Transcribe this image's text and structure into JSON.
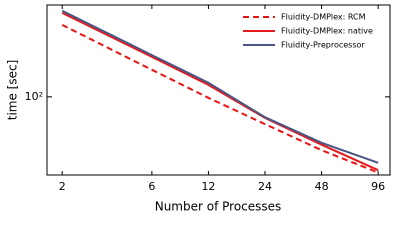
{
  "chart_data": {
    "type": "line",
    "x_label": "Number of Processes",
    "y_label": "time [sec]",
    "x": [
      2,
      6,
      12,
      24,
      48,
      96
    ],
    "series": [
      {
        "name": "Fluidity-DMPlex: RCM",
        "color": "#ee1111",
        "linestyle": "dashed",
        "values": [
          485,
          181,
          98,
          55,
          31,
          19
        ]
      },
      {
        "name": "Fluidity-DMPlex: native",
        "color": "#e31a1c",
        "linestyle": "solid",
        "values": [
          630,
          240,
          130,
          63,
          35,
          20
        ]
      },
      {
        "name": "Fluidity-Preprocessor",
        "color": "#4a5785",
        "linestyle": "solid",
        "values": [
          660,
          250,
          136,
          64,
          36.5,
          23.5
        ]
      }
    ],
    "xscale": "log",
    "yscale": "log",
    "xlim": [
      1.66,
      111
    ],
    "ylim": [
      18,
      750
    ],
    "xticks": [
      2,
      6,
      12,
      24,
      48,
      96
    ],
    "yticks": [
      {
        "value": 100,
        "label": "10²"
      }
    ],
    "legend": "upper right"
  }
}
